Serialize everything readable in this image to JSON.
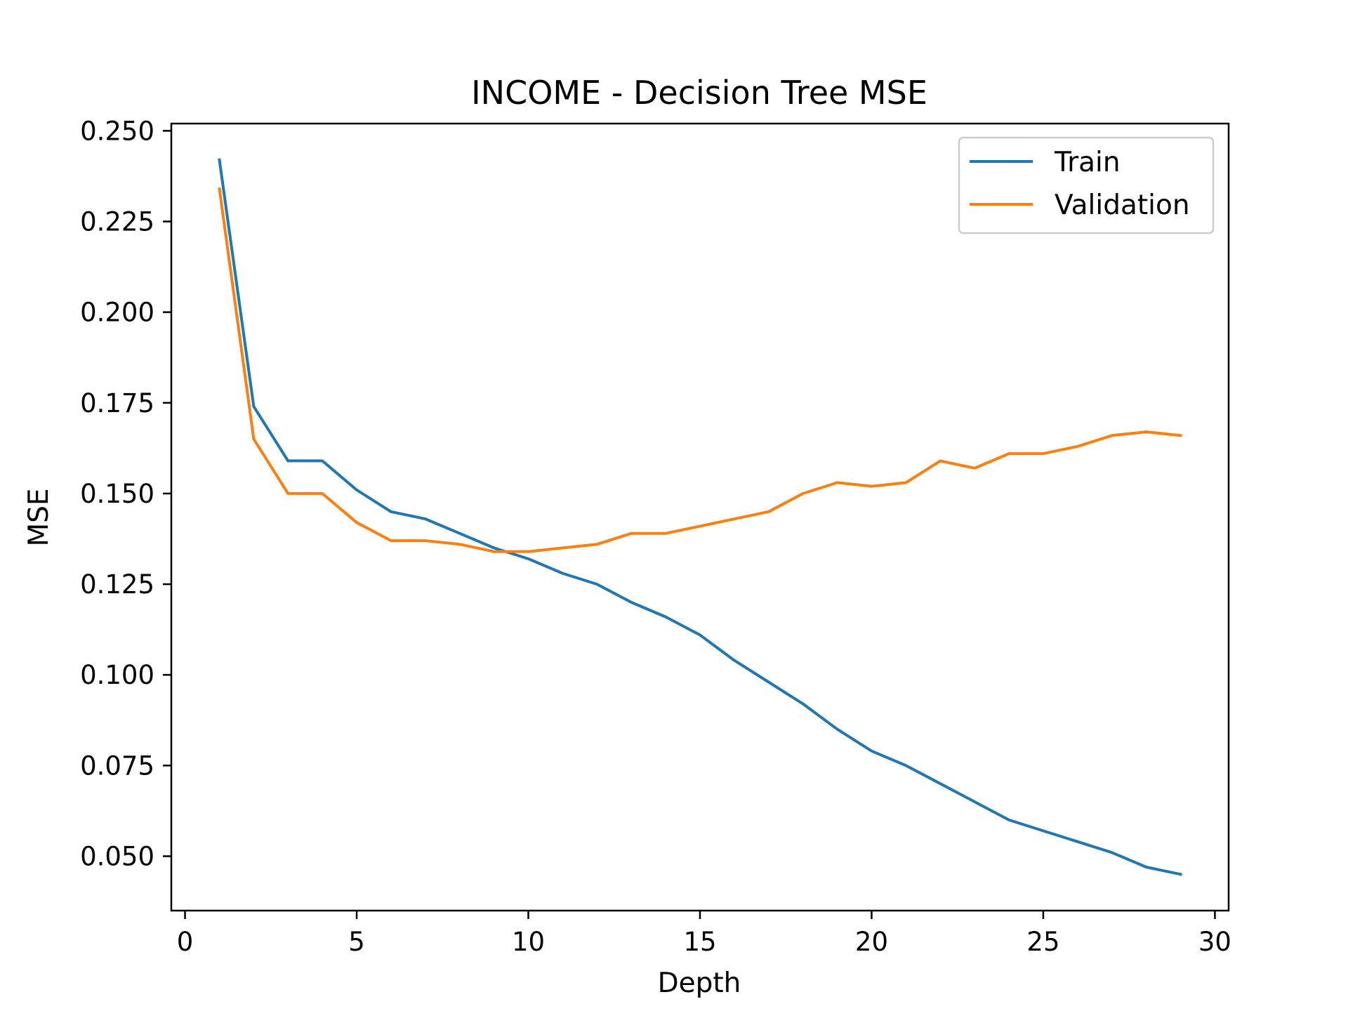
{
  "chart_data": {
    "type": "line",
    "title": "INCOME - Decision Tree MSE",
    "xlabel": "Depth",
    "ylabel": "MSE",
    "xlim": [
      -0.4,
      30.4
    ],
    "ylim": [
      0.035,
      0.252
    ],
    "xticks": [
      0,
      5,
      10,
      15,
      20,
      25,
      30
    ],
    "yticks": [
      0.05,
      0.075,
      0.1,
      0.125,
      0.15,
      0.175,
      0.2,
      0.225,
      0.25
    ],
    "xtick_labels": [
      "0",
      "5",
      "10",
      "15",
      "20",
      "25",
      "30"
    ],
    "ytick_labels": [
      "0.050",
      "0.075",
      "0.100",
      "0.125",
      "0.150",
      "0.175",
      "0.200",
      "0.225",
      "0.250"
    ],
    "grid": false,
    "legend_position": "top-right",
    "x": [
      1,
      2,
      3,
      4,
      5,
      6,
      7,
      8,
      9,
      10,
      11,
      12,
      13,
      14,
      15,
      16,
      17,
      18,
      19,
      20,
      21,
      22,
      23,
      24,
      25,
      26,
      27,
      28,
      29
    ],
    "series": [
      {
        "name": "Train",
        "color": "#1f77b4",
        "values": [
          0.242,
          0.174,
          0.159,
          0.159,
          0.151,
          0.145,
          0.143,
          0.139,
          0.135,
          0.132,
          0.128,
          0.125,
          0.12,
          0.116,
          0.111,
          0.104,
          0.098,
          0.092,
          0.085,
          0.079,
          0.075,
          0.07,
          0.065,
          0.06,
          0.057,
          0.054,
          0.051,
          0.047,
          0.045
        ]
      },
      {
        "name": "Validation",
        "color": "#ff7f0e",
        "values": [
          0.234,
          0.165,
          0.15,
          0.15,
          0.142,
          0.137,
          0.137,
          0.136,
          0.134,
          0.134,
          0.135,
          0.136,
          0.139,
          0.139,
          0.141,
          0.143,
          0.145,
          0.15,
          0.153,
          0.152,
          0.153,
          0.159,
          0.157,
          0.161,
          0.161,
          0.163,
          0.166,
          0.167,
          0.166
        ]
      }
    ]
  }
}
